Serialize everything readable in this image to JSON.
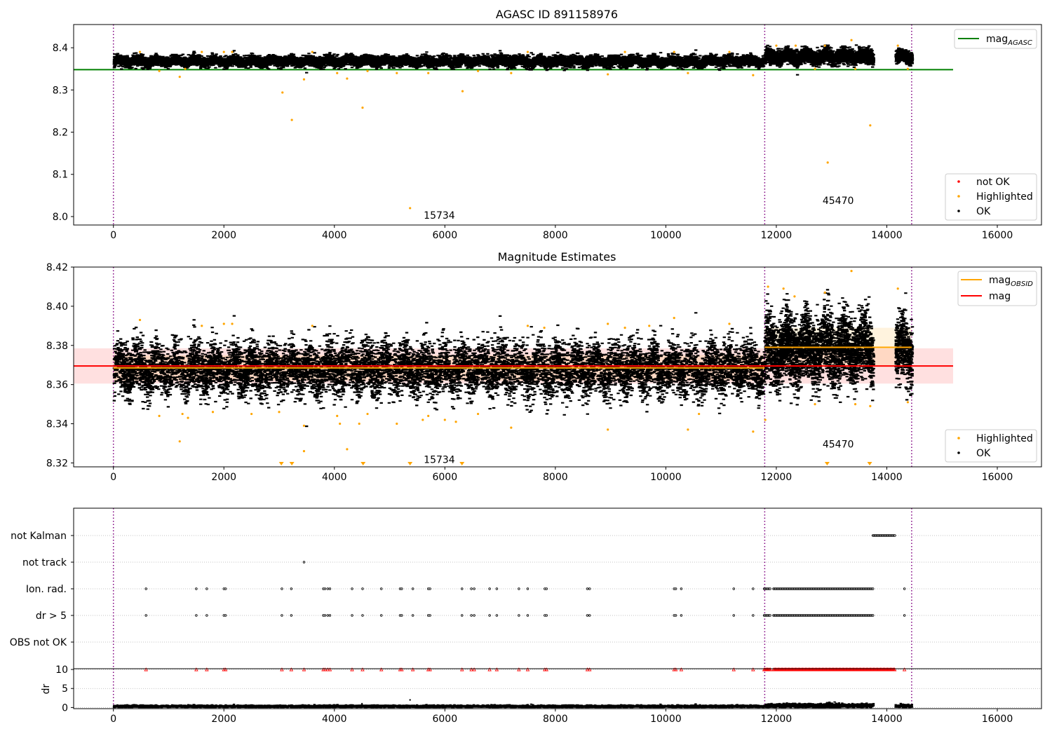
{
  "chart_data": [
    {
      "type": "scatter",
      "title": "AGASC ID 891158976",
      "xlim": [
        -720,
        16800
      ],
      "ylim": [
        7.98,
        8.455
      ],
      "xticks": [
        0,
        2000,
        4000,
        6000,
        8000,
        10000,
        12000,
        14000,
        16000
      ],
      "xtick_labels": [
        "0",
        "2000",
        "4000",
        "6000",
        "8000",
        "10000",
        "12000",
        "14000",
        "16000"
      ],
      "yticks": [
        8.0,
        8.1,
        8.2,
        8.3,
        8.4
      ],
      "ytick_labels": [
        "8.0",
        "8.1",
        "8.2",
        "8.3",
        "8.4"
      ],
      "grid": false,
      "lines": [
        {
          "name": "mag_AGASC",
          "legend_label": "mag",
          "legend_sub": "AGASC",
          "color": "#008000",
          "y": 8.348,
          "x": [
            -720,
            15200
          ]
        }
      ],
      "ok_bands": [
        {
          "x": [
            0,
            11790
          ],
          "center": 8.368,
          "spread": 0.006
        },
        {
          "x": [
            11790,
            13750
          ],
          "center": 8.379,
          "spread": 0.008
        },
        {
          "x": [
            14150,
            14450
          ],
          "center": 8.378,
          "spread": 0.007
        }
      ],
      "highlighted_points": [
        [
          480,
          8.39
        ],
        [
          830,
          8.345
        ],
        [
          1200,
          8.331
        ],
        [
          1300,
          8.35
        ],
        [
          1600,
          8.39
        ],
        [
          2000,
          8.39
        ],
        [
          2150,
          8.39
        ],
        [
          3060,
          8.294
        ],
        [
          3230,
          8.229
        ],
        [
          3450,
          8.325
        ],
        [
          3600,
          8.39
        ],
        [
          4050,
          8.34
        ],
        [
          4230,
          8.327
        ],
        [
          4510,
          8.258
        ],
        [
          4600,
          8.345
        ],
        [
          5130,
          8.34
        ],
        [
          5370,
          8.02
        ],
        [
          5700,
          8.34
        ],
        [
          6320,
          8.297
        ],
        [
          6600,
          8.345
        ],
        [
          7200,
          8.34
        ],
        [
          7500,
          8.39
        ],
        [
          8950,
          8.337
        ],
        [
          9260,
          8.39
        ],
        [
          10150,
          8.39
        ],
        [
          10400,
          8.34
        ],
        [
          11150,
          8.39
        ],
        [
          11580,
          8.335
        ],
        [
          12000,
          8.405
        ],
        [
          12350,
          8.405
        ],
        [
          12700,
          8.35
        ],
        [
          12880,
          8.405
        ],
        [
          12930,
          8.128
        ],
        [
          13360,
          8.418
        ],
        [
          13430,
          8.35
        ],
        [
          13700,
          8.216
        ],
        [
          14200,
          8.405
        ],
        [
          14380,
          8.35
        ]
      ],
      "not_ok_points": [],
      "annotations": [
        {
          "text": "15734",
          "x": 5900,
          "y": 8.0
        },
        {
          "text": "45470",
          "x": 13120,
          "y": 8.035
        }
      ],
      "vlines": [
        0,
        11790,
        14450
      ],
      "legends": [
        {
          "position": "top-right",
          "entries": [
            {
              "label": "mag",
              "sub": "AGASC",
              "kind": "line",
              "color": "#008000"
            }
          ]
        },
        {
          "position": "bottom-right",
          "entries": [
            {
              "label": "not OK",
              "kind": "point",
              "color": "#ff0000"
            },
            {
              "label": "Highlighted",
              "kind": "point",
              "color": "#ffa500"
            },
            {
              "label": "OK",
              "kind": "point",
              "color": "#000000"
            }
          ]
        }
      ]
    },
    {
      "type": "scatter",
      "title": "Magnitude Estimates",
      "xlim": [
        -720,
        16800
      ],
      "ylim": [
        8.318,
        8.42
      ],
      "xticks": [
        0,
        2000,
        4000,
        6000,
        8000,
        10000,
        12000,
        14000,
        16000
      ],
      "xtick_labels": [
        "0",
        "2000",
        "4000",
        "6000",
        "8000",
        "10000",
        "12000",
        "14000",
        "16000"
      ],
      "yticks": [
        8.32,
        8.34,
        8.36,
        8.38,
        8.4,
        8.42
      ],
      "ytick_labels": [
        "8.32",
        "8.34",
        "8.36",
        "8.38",
        "8.40",
        "8.42"
      ],
      "grid": false,
      "lines": [
        {
          "name": "mag_OBSID",
          "color": "#ffa500",
          "segments": [
            {
              "x": [
                0,
                11790
              ],
              "y": 8.3685
            },
            {
              "x": [
                11790,
                14450
              ],
              "y": 8.379
            }
          ]
        },
        {
          "name": "mag",
          "color": "#ff0000",
          "segments": [
            {
              "x": [
                -720,
                15200
              ],
              "y": 8.3695
            }
          ]
        }
      ],
      "bands": [
        {
          "color": "#ff0000",
          "opacity": 0.12,
          "x": [
            -720,
            15200
          ],
          "y": [
            8.3605,
            8.3785
          ]
        },
        {
          "color": "#ffa500",
          "opacity": 0.13,
          "x": [
            0,
            11790
          ],
          "y": [
            8.362,
            8.375
          ]
        },
        {
          "color": "#ffa500",
          "opacity": 0.13,
          "x": [
            11790,
            14450
          ],
          "y": [
            8.369,
            8.389
          ]
        }
      ],
      "ok_bands": [
        {
          "x": [
            0,
            11790
          ],
          "center": 8.368,
          "spread": 0.0065
        },
        {
          "x": [
            11790,
            13750
          ],
          "center": 8.378,
          "spread": 0.0085
        },
        {
          "x": [
            14150,
            14450
          ],
          "center": 8.377,
          "spread": 0.008
        }
      ],
      "highlighted_points": [
        [
          480,
          8.393
        ],
        [
          830,
          8.344
        ],
        [
          1200,
          8.331
        ],
        [
          1250,
          8.345
        ],
        [
          1350,
          8.343
        ],
        [
          1600,
          8.39
        ],
        [
          1800,
          8.346
        ],
        [
          2000,
          8.391
        ],
        [
          2150,
          8.391
        ],
        [
          2500,
          8.345
        ],
        [
          3000,
          8.346
        ],
        [
          3450,
          8.339
        ],
        [
          3450,
          8.326
        ],
        [
          3600,
          8.39
        ],
        [
          4050,
          8.344
        ],
        [
          4100,
          8.34
        ],
        [
          4230,
          8.327
        ],
        [
          4450,
          8.34
        ],
        [
          4600,
          8.345
        ],
        [
          5130,
          8.34
        ],
        [
          5600,
          8.342
        ],
        [
          5700,
          8.344
        ],
        [
          6000,
          8.342
        ],
        [
          6200,
          8.341
        ],
        [
          6600,
          8.345
        ],
        [
          7200,
          8.338
        ],
        [
          7500,
          8.39
        ],
        [
          7800,
          8.389
        ],
        [
          8950,
          8.337
        ],
        [
          8950,
          8.391
        ],
        [
          9260,
          8.389
        ],
        [
          9700,
          8.39
        ],
        [
          10150,
          8.394
        ],
        [
          10400,
          8.337
        ],
        [
          10600,
          8.345
        ],
        [
          11150,
          8.391
        ],
        [
          11580,
          8.336
        ],
        [
          11800,
          8.342
        ],
        [
          11850,
          8.41
        ],
        [
          12130,
          8.409
        ],
        [
          12330,
          8.405
        ],
        [
          12700,
          8.35
        ],
        [
          12880,
          8.407
        ],
        [
          13360,
          8.418
        ],
        [
          13430,
          8.35
        ],
        [
          13700,
          8.349
        ],
        [
          14200,
          8.409
        ],
        [
          14380,
          8.351
        ]
      ],
      "below_range_markers": [
        3040,
        3230,
        4520,
        5370,
        6310,
        12920,
        13690
      ],
      "annotations": [
        {
          "text": "15734",
          "x": 5900,
          "y": 8.321
        },
        {
          "text": "45470",
          "x": 13120,
          "y": 8.329
        }
      ],
      "vlines": [
        0,
        11790,
        14450
      ],
      "legends": [
        {
          "position": "top-right",
          "entries": [
            {
              "label": "mag",
              "sub": "OBSID",
              "kind": "line",
              "color": "#ffa500"
            },
            {
              "label": "mag",
              "kind": "line",
              "color": "#ff0000"
            }
          ]
        },
        {
          "position": "bottom-right",
          "entries": [
            {
              "label": "Highlighted",
              "kind": "point",
              "color": "#ffa500"
            },
            {
              "label": "OK",
              "kind": "point",
              "color": "#000000"
            }
          ]
        }
      ]
    },
    {
      "type": "scatter",
      "title": "",
      "xlim": [
        -720,
        16800
      ],
      "categories": [
        "OBS not OK",
        "dr > 5",
        "Ion. rad.",
        "not track",
        "not Kalman"
      ],
      "vlines": [
        0,
        11790,
        14450
      ],
      "flag_points": {
        "not Kalman": {
          "ranges": [
            [
              13750,
              14150
            ]
          ]
        },
        "not track": {
          "x": [
            3450
          ]
        },
        "Ion. rad.": {
          "x": [
            590,
            1500,
            1690,
            2000,
            2030,
            3050,
            3220,
            3800,
            3830,
            3880,
            3920,
            4320,
            4510,
            4850,
            5190,
            5220,
            5420,
            5700,
            5730,
            6310,
            6480,
            6530,
            6810,
            6940,
            7340,
            7500,
            7810,
            7840,
            8580,
            8620,
            10150,
            10180,
            10280,
            11230,
            11580
          ],
          "ranges": [
            [
              11780,
              11900
            ],
            [
              11950,
              13750
            ]
          ],
          "extra_x": [
            14320
          ]
        },
        "dr > 5": {
          "x": [
            590,
            1500,
            1690,
            2000,
            2030,
            3050,
            3220,
            3800,
            3830,
            3880,
            3920,
            4320,
            4510,
            4850,
            5190,
            5220,
            5420,
            5700,
            5730,
            6310,
            6480,
            6530,
            6810,
            6940,
            7340,
            7500,
            7810,
            7840,
            8580,
            8620,
            10150,
            10180,
            10280,
            11230,
            11580
          ],
          "ranges": [
            [
              11780,
              11900
            ],
            [
              11950,
              13750
            ]
          ],
          "extra_x": [
            14320
          ]
        },
        "OBS not OK": {
          "x": []
        }
      }
    },
    {
      "type": "scatter",
      "title": "",
      "ylabel": "dr",
      "xlim": [
        -720,
        16800
      ],
      "ylim": [
        -0.3,
        10.2
      ],
      "yticks": [
        0,
        5,
        10
      ],
      "ytick_labels": [
        "0",
        "5",
        "10"
      ],
      "xticks": [
        0,
        2000,
        4000,
        6000,
        8000,
        10000,
        12000,
        14000,
        16000
      ],
      "xtick_labels": [
        "0",
        "2000",
        "4000",
        "6000",
        "8000",
        "10000",
        "12000",
        "14000",
        "16000"
      ],
      "grid": "y-dotted",
      "dr_ok_ranges": [
        {
          "x": [
            0,
            11790
          ],
          "center": 0.3,
          "spread": 0.15
        },
        {
          "x": [
            11790,
            13750
          ],
          "center": 0.5,
          "spread": 0.25
        },
        {
          "x": [
            14150,
            14450
          ],
          "center": 0.4,
          "spread": 0.2
        }
      ],
      "dr_extra_points": [
        [
          5370,
          2.0
        ],
        [
          4500,
          1.0
        ]
      ],
      "clipped_markers": {
        "value": 10,
        "color": "#ff0000",
        "x": [
          590,
          1500,
          1690,
          2000,
          2030,
          3050,
          3220,
          3450,
          3800,
          3830,
          3880,
          3920,
          4320,
          4510,
          4850,
          5190,
          5220,
          5420,
          5700,
          5730,
          6310,
          6480,
          6530,
          6810,
          6940,
          7340,
          7500,
          7810,
          7840,
          8580,
          8620,
          10150,
          10180,
          10280,
          11230,
          11580
        ],
        "ranges": [
          [
            11780,
            11900
          ],
          [
            11950,
            14150
          ]
        ],
        "extra_x": [
          14320
        ]
      },
      "vlines": [
        0,
        11790,
        14450
      ]
    }
  ]
}
